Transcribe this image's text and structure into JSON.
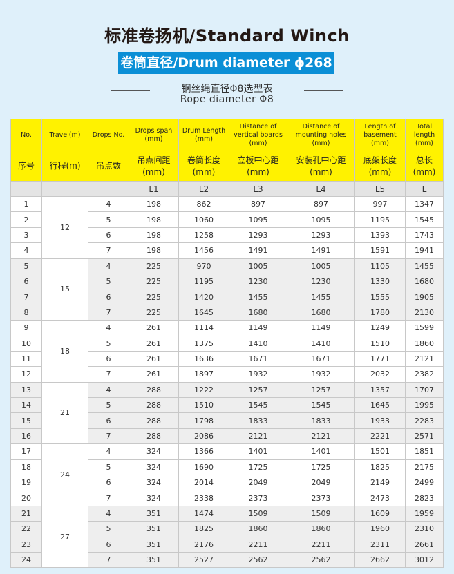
{
  "title": "标准卷扬机/Standard Winch",
  "badge": "卷筒直径/Drum diameter ϕ268",
  "subtitle_cn": "钢丝绳直径Φ8选型表",
  "subtitle_en": "Rope diameter Φ8",
  "colors": {
    "header": "#fff200",
    "badge": "#0b8fd6",
    "background": "#dff0fa"
  },
  "table": {
    "header_en": [
      "No.",
      "Travel(m)",
      "Drops No.",
      "Drops span\n(mm)",
      "Drum Length\n(mm)",
      "Distance of\nvertical boards\n(mm)",
      "Distance of\nmounting holes\n(mm)",
      "Length of\nbasement\n(mm)",
      "Total\nlength\n(mm)"
    ],
    "header_cn": [
      "序号",
      "行程(m)",
      "吊点数",
      "吊点间距\n(mm)",
      "卷筒长度\n(mm)",
      "立板中心距\n(mm)",
      "安装孔中心距\n(mm)",
      "底架长度\n(mm)",
      "总长\n(mm)"
    ],
    "symbols": [
      "",
      "",
      "",
      "L1",
      "L2",
      "L3",
      "L4",
      "L5",
      "L"
    ],
    "groups": [
      {
        "travel": "12",
        "rows": [
          [
            "1",
            "4",
            "198",
            "862",
            "897",
            "897",
            "997",
            "1347"
          ],
          [
            "2",
            "5",
            "198",
            "1060",
            "1095",
            "1095",
            "1195",
            "1545"
          ],
          [
            "3",
            "6",
            "198",
            "1258",
            "1293",
            "1293",
            "1393",
            "1743"
          ],
          [
            "4",
            "7",
            "198",
            "1456",
            "1491",
            "1491",
            "1591",
            "1941"
          ]
        ]
      },
      {
        "travel": "15",
        "rows": [
          [
            "5",
            "4",
            "225",
            "970",
            "1005",
            "1005",
            "1105",
            "1455"
          ],
          [
            "6",
            "5",
            "225",
            "1195",
            "1230",
            "1230",
            "1330",
            "1680"
          ],
          [
            "7",
            "6",
            "225",
            "1420",
            "1455",
            "1455",
            "1555",
            "1905"
          ],
          [
            "8",
            "7",
            "225",
            "1645",
            "1680",
            "1680",
            "1780",
            "2130"
          ]
        ]
      },
      {
        "travel": "18",
        "rows": [
          [
            "9",
            "4",
            "261",
            "1114",
            "1149",
            "1149",
            "1249",
            "1599"
          ],
          [
            "10",
            "5",
            "261",
            "1375",
            "1410",
            "1410",
            "1510",
            "1860"
          ],
          [
            "11",
            "6",
            "261",
            "1636",
            "1671",
            "1671",
            "1771",
            "2121"
          ],
          [
            "12",
            "7",
            "261",
            "1897",
            "1932",
            "1932",
            "2032",
            "2382"
          ]
        ]
      },
      {
        "travel": "21",
        "rows": [
          [
            "13",
            "4",
            "288",
            "1222",
            "1257",
            "1257",
            "1357",
            "1707"
          ],
          [
            "14",
            "5",
            "288",
            "1510",
            "1545",
            "1545",
            "1645",
            "1995"
          ],
          [
            "15",
            "6",
            "288",
            "1798",
            "1833",
            "1833",
            "1933",
            "2283"
          ],
          [
            "16",
            "7",
            "288",
            "2086",
            "2121",
            "2121",
            "2221",
            "2571"
          ]
        ]
      },
      {
        "travel": "24",
        "rows": [
          [
            "17",
            "4",
            "324",
            "1366",
            "1401",
            "1401",
            "1501",
            "1851"
          ],
          [
            "18",
            "5",
            "324",
            "1690",
            "1725",
            "1725",
            "1825",
            "2175"
          ],
          [
            "19",
            "6",
            "324",
            "2014",
            "2049",
            "2049",
            "2149",
            "2499"
          ],
          [
            "20",
            "7",
            "324",
            "2338",
            "2373",
            "2373",
            "2473",
            "2823"
          ]
        ]
      },
      {
        "travel": "27",
        "rows": [
          [
            "21",
            "4",
            "351",
            "1474",
            "1509",
            "1509",
            "1609",
            "1959"
          ],
          [
            "22",
            "5",
            "351",
            "1825",
            "1860",
            "1860",
            "1960",
            "2310"
          ],
          [
            "23",
            "6",
            "351",
            "2176",
            "2211",
            "2211",
            "2311",
            "2661"
          ],
          [
            "24",
            "7",
            "351",
            "2527",
            "2562",
            "2562",
            "2662",
            "3012"
          ]
        ]
      }
    ]
  }
}
